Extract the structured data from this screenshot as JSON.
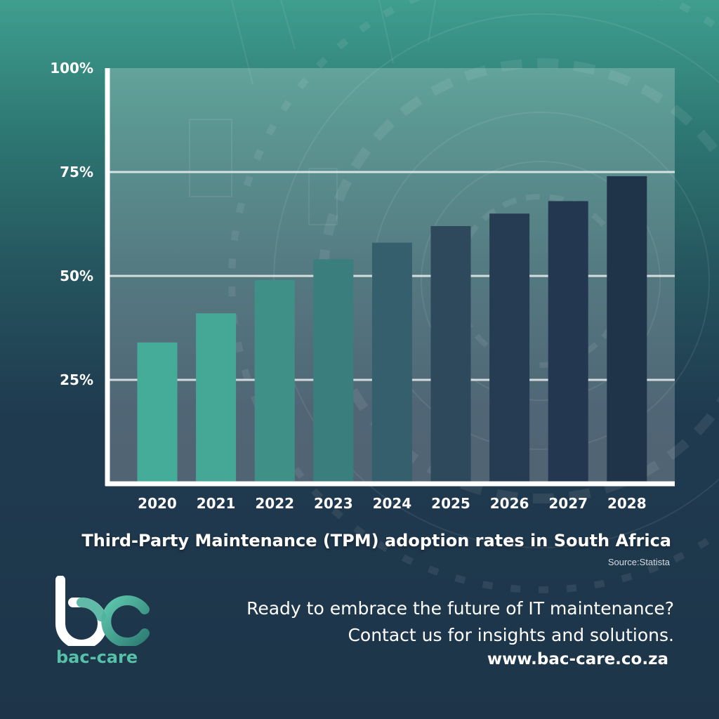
{
  "chart_data": {
    "type": "bar",
    "title": "Third-Party Maintenance (TPM) adoption rates in South Africa",
    "source": "Source:Statista",
    "categories": [
      "2020",
      "2021",
      "2022",
      "2023",
      "2024",
      "2025",
      "2026",
      "2027",
      "2028"
    ],
    "values": [
      34,
      41,
      49,
      54,
      58,
      62,
      65,
      68,
      74
    ],
    "ylim": [
      0,
      100
    ],
    "yticks": [
      {
        "value": 25,
        "label": "25%"
      },
      {
        "value": 50,
        "label": "50%"
      },
      {
        "value": 75,
        "label": "75%"
      },
      {
        "value": 100,
        "label": "100%"
      }
    ],
    "grid": true,
    "bar_colors": [
      "#46ac9a",
      "#45a896",
      "#3f9188",
      "#3a7e7e",
      "#355f6c",
      "#2e485c",
      "#263c52",
      "#233850",
      "#1f3449"
    ]
  },
  "cta": {
    "line1": "Ready to embrace the future of IT maintenance?",
    "line2": "Contact us for insights and solutions.",
    "url": "www.bac-care.co.za"
  },
  "brand": {
    "name": "bac-care",
    "logo_icon": "bc-logo-icon",
    "accent": "#56c0a8"
  }
}
